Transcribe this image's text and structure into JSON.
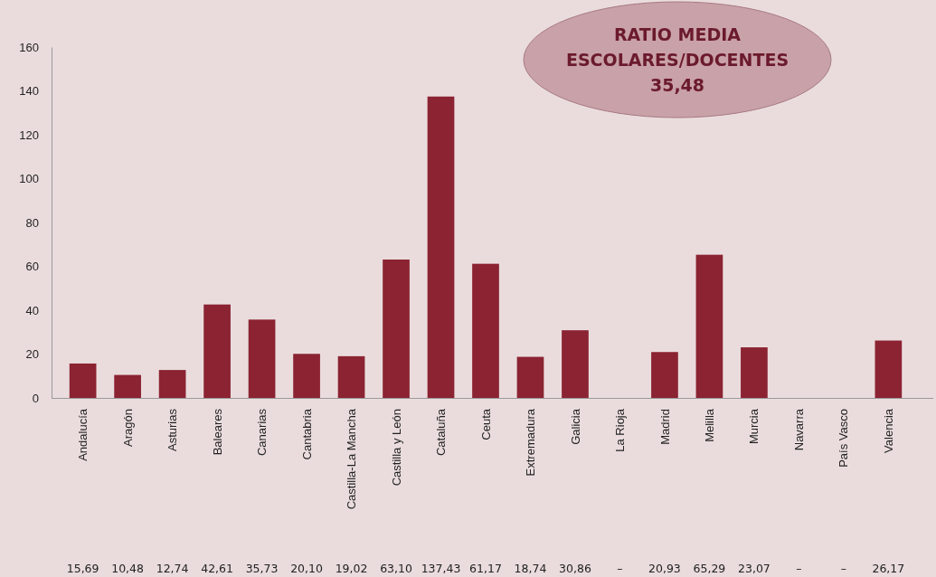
{
  "chart_data": {
    "type": "bar",
    "title": "RATIO MEDIA ESCOLARES/DOCENTES 35,48",
    "categories": [
      "Andalucía",
      "Aragón",
      "Asturias",
      "Baleares",
      "Canarias",
      "Cantabria",
      "Castilla-La Mancha",
      "Castilla y León",
      "Cataluña",
      "Ceuta",
      "Extremadura",
      "Galicia",
      "La Rioja",
      "Madrid",
      "Melilla",
      "Murcia",
      "Navarra",
      "País Vasco",
      "Valencia"
    ],
    "values": [
      15.69,
      10.48,
      12.74,
      42.61,
      35.73,
      20.1,
      19.02,
      63.1,
      137.43,
      61.17,
      18.74,
      30.86,
      null,
      20.93,
      65.29,
      23.07,
      null,
      null,
      26.17
    ],
    "value_labels": [
      "15,69",
      "10,48",
      "12,74",
      "42,61",
      "35,73",
      "20,10",
      "19,02",
      "63,10",
      "137,43",
      "61,17",
      "18,74",
      "30,86",
      "–",
      "20,93",
      "65,29",
      "23,07",
      "–",
      "–",
      "26,17"
    ],
    "color": "#8b2332",
    "ylim": [
      0,
      160
    ],
    "yticks": [
      0,
      20,
      40,
      60,
      80,
      100,
      120,
      140,
      160
    ],
    "grid": false
  }
}
